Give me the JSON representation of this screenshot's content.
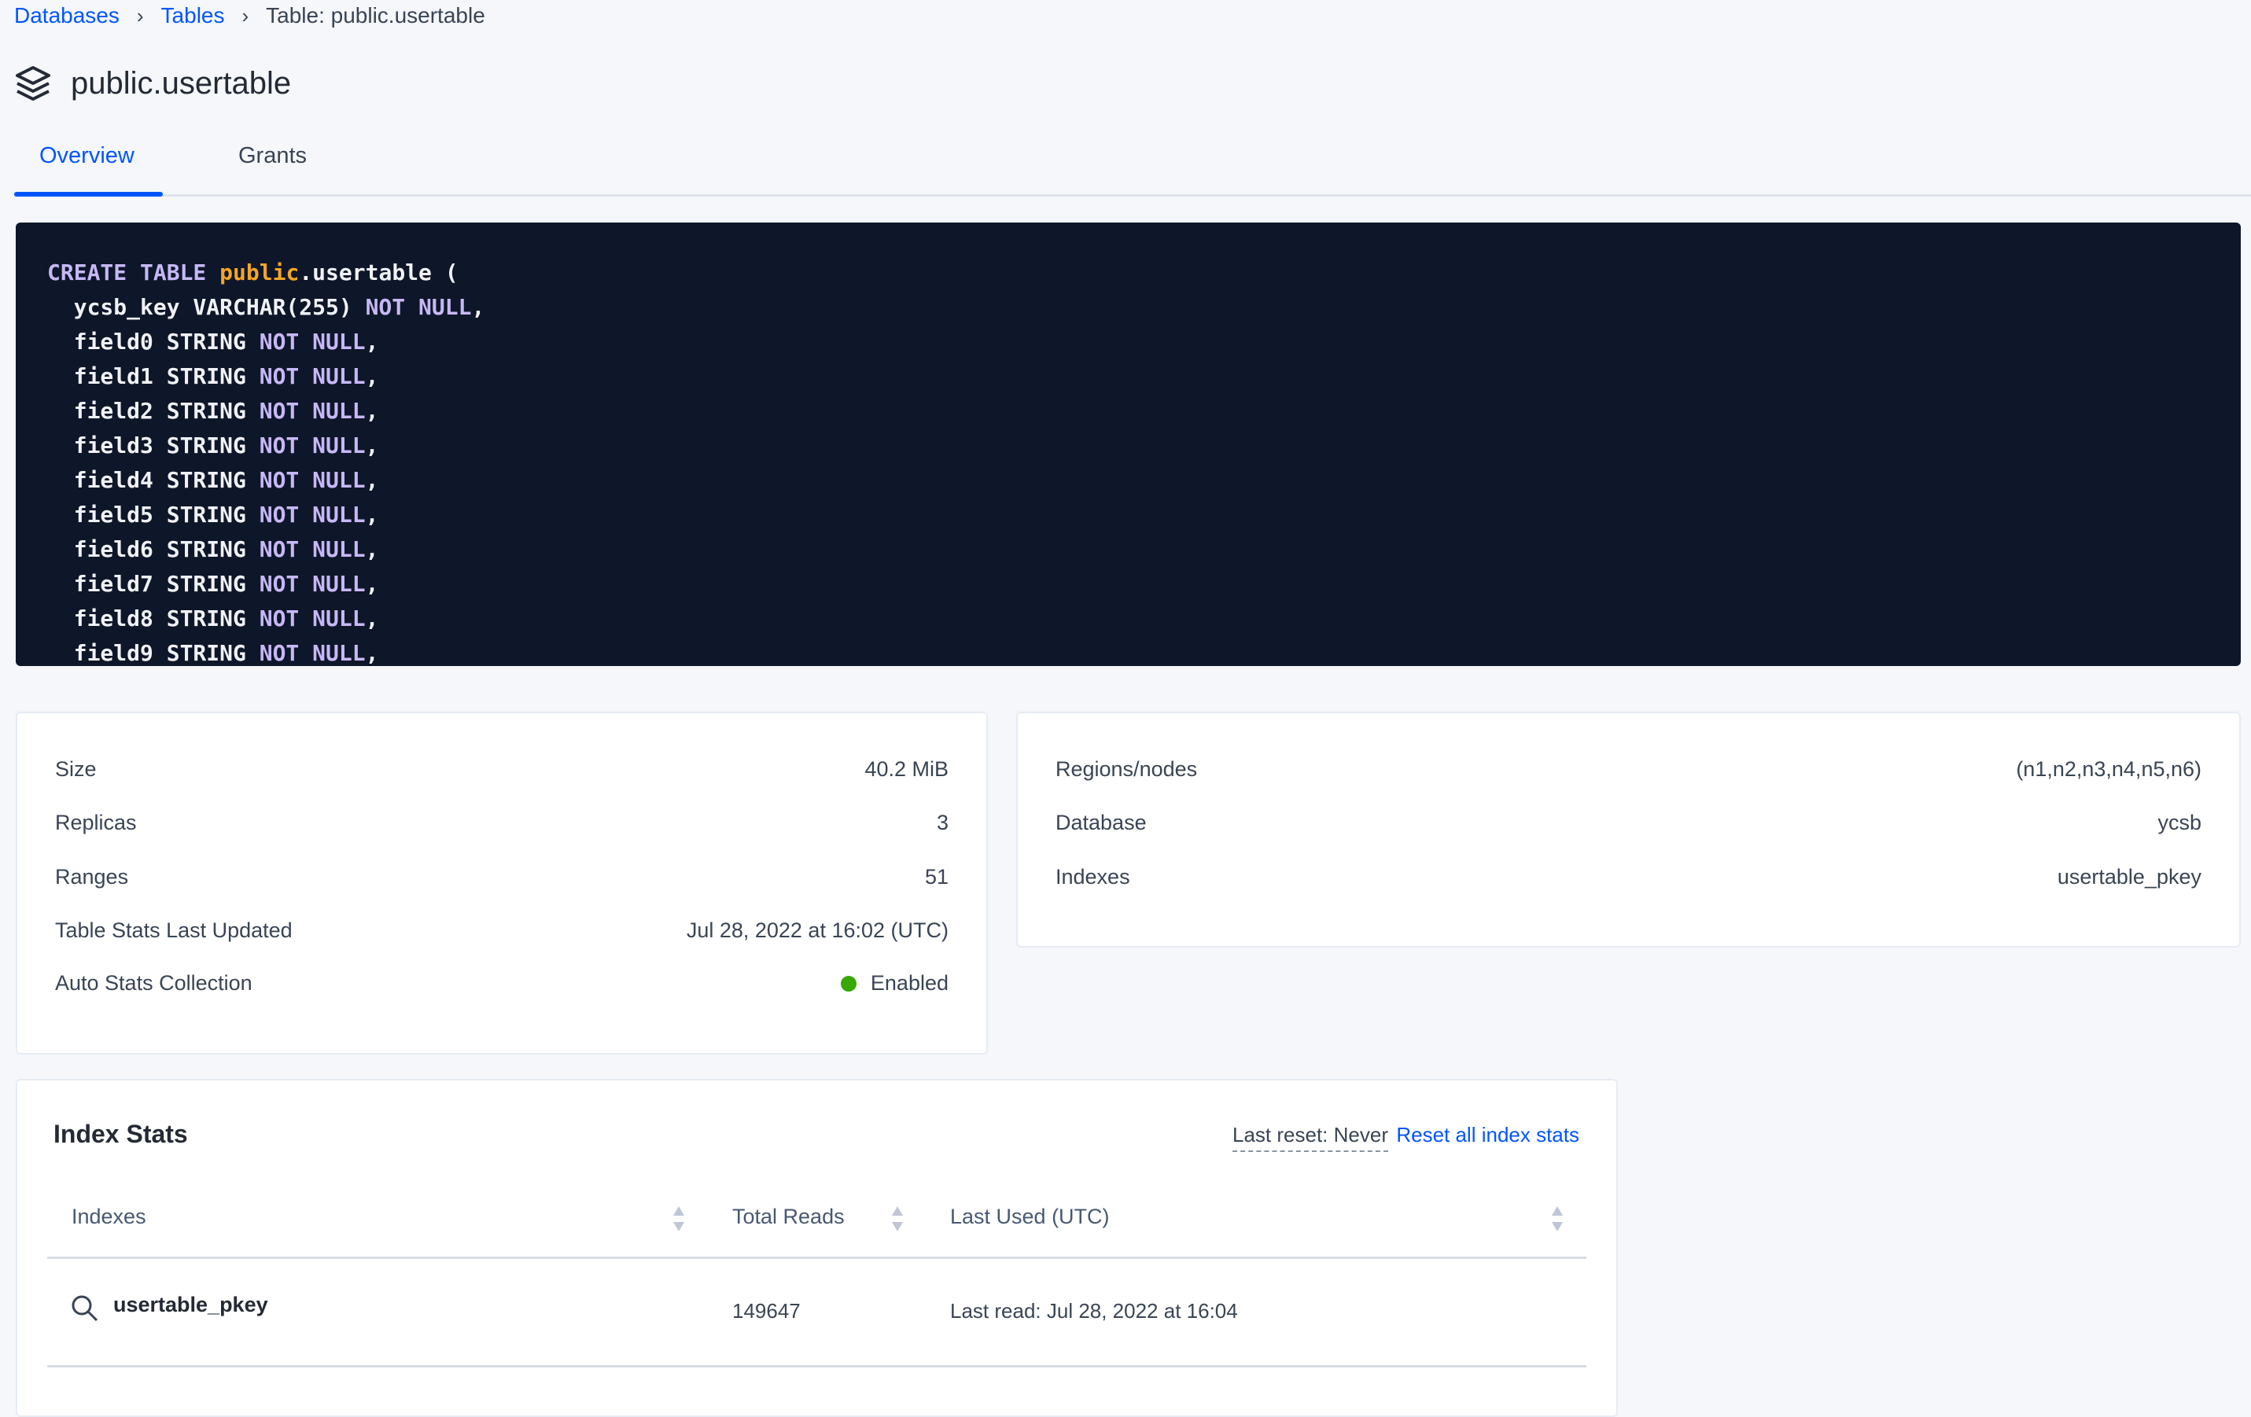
{
  "breadcrumb": {
    "items": [
      "Databases",
      "Tables"
    ],
    "current": "Table: public.usertable"
  },
  "page": {
    "title": "public.usertable",
    "icon": "stack-icon"
  },
  "tabs": [
    {
      "label": "Overview",
      "active": true
    },
    {
      "label": "Grants",
      "active": false
    }
  ],
  "code": {
    "lines": [
      [
        [
          "kw",
          "CREATE TABLE "
        ],
        [
          "or",
          "public"
        ],
        [
          "pl",
          ".usertable ("
        ]
      ],
      [
        [
          "pl",
          "  ycsb_key VARCHAR(255) "
        ],
        [
          "kw",
          "NOT NULL"
        ],
        [
          "pl",
          ","
        ]
      ],
      [
        [
          "pl",
          "  field0 STRING "
        ],
        [
          "kw",
          "NOT NULL"
        ],
        [
          "pl",
          ","
        ]
      ],
      [
        [
          "pl",
          "  field1 STRING "
        ],
        [
          "kw",
          "NOT NULL"
        ],
        [
          "pl",
          ","
        ]
      ],
      [
        [
          "pl",
          "  field2 STRING "
        ],
        [
          "kw",
          "NOT NULL"
        ],
        [
          "pl",
          ","
        ]
      ],
      [
        [
          "pl",
          "  field3 STRING "
        ],
        [
          "kw",
          "NOT NULL"
        ],
        [
          "pl",
          ","
        ]
      ],
      [
        [
          "pl",
          "  field4 STRING "
        ],
        [
          "kw",
          "NOT NULL"
        ],
        [
          "pl",
          ","
        ]
      ],
      [
        [
          "pl",
          "  field5 STRING "
        ],
        [
          "kw",
          "NOT NULL"
        ],
        [
          "pl",
          ","
        ]
      ],
      [
        [
          "pl",
          "  field6 STRING "
        ],
        [
          "kw",
          "NOT NULL"
        ],
        [
          "pl",
          ","
        ]
      ],
      [
        [
          "pl",
          "  field7 STRING "
        ],
        [
          "kw",
          "NOT NULL"
        ],
        [
          "pl",
          ","
        ]
      ],
      [
        [
          "pl",
          "  field8 STRING "
        ],
        [
          "kw",
          "NOT NULL"
        ],
        [
          "pl",
          ","
        ]
      ],
      [
        [
          "pl",
          "  field9 STRING "
        ],
        [
          "kw",
          "NOT NULL"
        ],
        [
          "pl",
          ","
        ]
      ]
    ]
  },
  "stats": [
    {
      "label": "Size",
      "value": "40.2 MiB"
    },
    {
      "label": "Replicas",
      "value": "3"
    },
    {
      "label": "Ranges",
      "value": "51"
    },
    {
      "label": "Table Stats Last Updated",
      "value": "Jul 28, 2022 at 16:02 (UTC)"
    },
    {
      "label": "Auto Stats Collection",
      "value": "Enabled",
      "status_color": "#37a806"
    }
  ],
  "info": [
    {
      "label": "Regions/nodes",
      "value": "(n1,n2,n3,n4,n5,n6)"
    },
    {
      "label": "Database",
      "value": "ycsb"
    },
    {
      "label": "Indexes",
      "value": "usertable_pkey"
    }
  ],
  "index_stats": {
    "title": "Index Stats",
    "last_reset": "Last reset: Never",
    "reset_link": "Reset all index stats",
    "columns": [
      "Indexes",
      "Total Reads",
      "Last Used (UTC)"
    ],
    "rows": [
      {
        "index": "usertable_pkey",
        "total_reads": "149647",
        "last_used": "Last read: Jul 28, 2022 at 16:04"
      }
    ]
  },
  "colors": {
    "accent": "#0055ff",
    "code_bg": "#0e1629",
    "keyword": "#c6b8f5",
    "schema": "#f5a623"
  }
}
